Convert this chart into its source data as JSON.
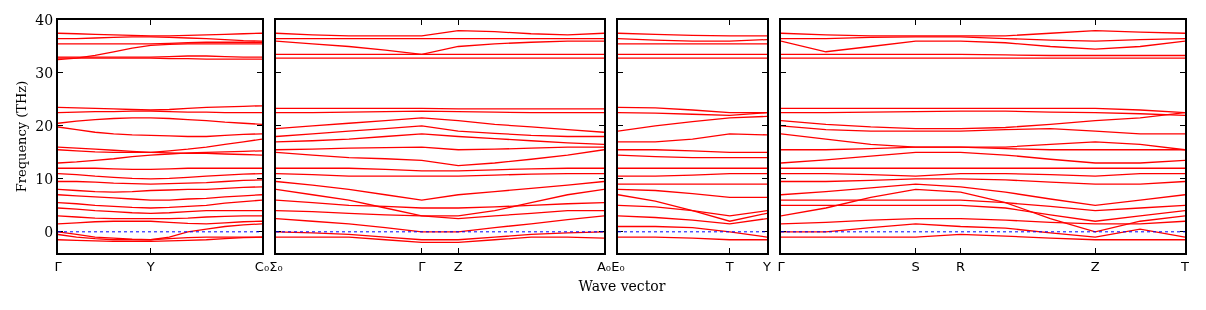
{
  "chart_data": [
    {
      "type": "line",
      "ylabel": "Frequency (THz)",
      "color": "#ff0000",
      "line_style": "solid",
      "marker": "none",
      "grid": false,
      "categories": [
        "Γ",
        null,
        null,
        null,
        null,
        "Y",
        null,
        null,
        null,
        null,
        null,
        "C₀"
      ],
      "ylim": [
        -4,
        40
      ],
      "yticks": [
        0,
        10,
        20,
        30,
        40
      ],
      "ref_lines": [
        {
          "axis": "y",
          "value": 0,
          "color": "#0000ff",
          "line_style": "dotted"
        }
      ],
      "series": [
        {
          "values": [
            37.5,
            37.4,
            37.3,
            37.2,
            37.1,
            37,
            37,
            37.1,
            37.2,
            37.3,
            37.4,
            37.5
          ]
        },
        {
          "values": [
            36.5,
            36.5,
            36.6,
            36.7,
            36.8,
            36.8,
            36.7,
            36.6,
            36.5,
            36.3,
            36.1,
            36
          ]
        },
        {
          "values": [
            35.5,
            35.5,
            35.5,
            35.5,
            35.5,
            35.5,
            35.6,
            35.7,
            35.8,
            35.8,
            35.8,
            35.8
          ]
        },
        {
          "values": [
            32.5,
            32.8,
            33.3,
            34,
            34.7,
            35.2,
            35.4,
            35.5,
            35.5,
            35.5,
            35.5,
            35.5
          ]
        },
        {
          "values": [
            33,
            33,
            33,
            33,
            33,
            33,
            33.1,
            33.2,
            33.2,
            33.1,
            33,
            33
          ]
        },
        {
          "values": [
            32.8,
            32.8,
            32.8,
            32.8,
            32.8,
            32.8,
            32.7,
            32.7,
            32.6,
            32.6,
            32.6,
            32.6
          ]
        },
        {
          "values": [
            23.5,
            23.4,
            23.3,
            23.2,
            23.1,
            23,
            23.1,
            23.3,
            23.5,
            23.6,
            23.7,
            23.8
          ]
        },
        {
          "values": [
            22.5,
            22.6,
            22.7,
            22.7,
            22.8,
            22.8,
            22.7,
            22.6,
            22.6,
            22.5,
            22.5,
            22.5
          ]
        },
        {
          "values": [
            20.5,
            20.9,
            21.2,
            21.4,
            21.5,
            21.5,
            21.4,
            21.2,
            21,
            20.7,
            20.5,
            20.3
          ]
        },
        {
          "values": [
            19.8,
            19.3,
            18.8,
            18.5,
            18.3,
            18.2,
            18.1,
            18,
            18,
            18.2,
            18.4,
            18.5
          ]
        },
        {
          "values": [
            16,
            15.8,
            15.6,
            15.4,
            15.2,
            15,
            15.3,
            15.6,
            16,
            16.5,
            17,
            17.5
          ]
        },
        {
          "values": [
            15.5,
            15.3,
            15.1,
            15,
            15,
            15,
            14.9,
            14.8,
            14.8,
            14.7,
            14.6,
            14.5
          ]
        },
        {
          "values": [
            13,
            13.2,
            13.5,
            13.8,
            14.2,
            14.5,
            14.7,
            14.9,
            15,
            15.1,
            15.2,
            15.3
          ]
        },
        {
          "values": [
            12,
            12,
            12,
            11.9,
            11.8,
            11.8,
            11.9,
            12,
            12,
            12,
            12,
            12
          ]
        },
        {
          "values": [
            11,
            10.8,
            10.5,
            10.3,
            10.1,
            10,
            10.1,
            10.3,
            10.5,
            10.7,
            10.9,
            11
          ]
        },
        {
          "values": [
            9.5,
            9.5,
            9.4,
            9.2,
            9.1,
            9,
            9.1,
            9.2,
            9.3,
            9.5,
            9.7,
            9.8
          ]
        },
        {
          "values": [
            8,
            7.8,
            7.6,
            7.5,
            7.6,
            7.8,
            7.9,
            8,
            8,
            8.2,
            8.4,
            8.5
          ]
        },
        {
          "values": [
            7,
            6.8,
            6.6,
            6.4,
            6.2,
            6,
            6,
            6.2,
            6.3,
            6.6,
            6.8,
            7
          ]
        },
        {
          "values": [
            5.5,
            5.3,
            5,
            4.8,
            4.6,
            4.5,
            4.6,
            4.8,
            5,
            5.4,
            5.7,
            6
          ]
        },
        {
          "values": [
            4.5,
            4.3,
            4,
            3.8,
            3.6,
            3.5,
            3.6,
            3.8,
            4,
            4,
            4,
            4
          ]
        },
        {
          "values": [
            3,
            2.8,
            2.6,
            2.5,
            2.5,
            2.5,
            2.5,
            2.6,
            2.8,
            2.9,
            3,
            3
          ]
        },
        {
          "values": [
            1.5,
            1.7,
            1.9,
            2,
            2,
            2,
            1.8,
            1.6,
            1.5,
            1.7,
            1.9,
            2
          ]
        },
        {
          "values": [
            0,
            -0.5,
            -1,
            -1.2,
            -1.4,
            -1.5,
            -1,
            0,
            0.5,
            1,
            1.3,
            1.5
          ]
        },
        {
          "values": [
            -0.5,
            -1,
            -1.3,
            -1.5,
            -1.5,
            -1.5,
            -1.3,
            -1.1,
            -1,
            -1,
            -1,
            -1
          ]
        },
        {
          "values": [
            -1.5,
            -1.6,
            -1.7,
            -1.8,
            -1.8,
            -1.8,
            -1.7,
            -1.6,
            -1.5,
            -1.3,
            -1.1,
            -1
          ]
        }
      ]
    },
    {
      "type": "line",
      "xlabel": "Wave vector",
      "color": "#ff0000",
      "line_style": "solid",
      "marker": "none",
      "grid": false,
      "tick_labels": "x",
      "categories": [
        "Σ₀",
        null,
        null,
        null,
        "Γ",
        "Z",
        null,
        null,
        null,
        "A₀"
      ],
      "ylim": [
        -4,
        40
      ],
      "ref_lines": [
        {
          "axis": "y",
          "value": 0,
          "color": "#0000ff",
          "line_style": "dotted"
        }
      ],
      "series": [
        {
          "values": [
            37.5,
            37.2,
            37,
            37,
            37,
            38,
            37.8,
            37.4,
            37.2,
            37.5
          ]
        },
        {
          "values": [
            36.5,
            36.5,
            36.5,
            36.5,
            36.5,
            36.5,
            36.5,
            36.5,
            36.5,
            36.5
          ]
        },
        {
          "values": [
            36,
            35.5,
            35,
            34.3,
            33.5,
            35,
            35.5,
            35.8,
            36,
            36
          ]
        },
        {
          "values": [
            33.5,
            33.5,
            33.5,
            33.5,
            33.5,
            33.5,
            33.5,
            33.5,
            33.5,
            33.5
          ]
        },
        {
          "values": [
            32.8,
            32.8,
            32.8,
            32.8,
            32.8,
            32.8,
            32.8,
            32.8,
            32.8,
            32.8
          ]
        },
        {
          "values": [
            23.3,
            23.3,
            23.3,
            23.3,
            23.3,
            23.2,
            23.2,
            23.2,
            23.2,
            23.2
          ]
        },
        {
          "values": [
            22.5,
            22.5,
            22.6,
            22.7,
            22.8,
            22.7,
            22.6,
            22.5,
            22.5,
            22.5
          ]
        },
        {
          "values": [
            19.5,
            20,
            20.5,
            21,
            21.5,
            21,
            20.3,
            19.8,
            19.3,
            18.8
          ]
        },
        {
          "values": [
            18,
            18.5,
            19,
            19.5,
            20,
            19,
            18.6,
            18.2,
            18,
            18
          ]
        },
        {
          "values": [
            17,
            17.2,
            17.5,
            18,
            18.5,
            18,
            17.6,
            17.2,
            16.8,
            16.5
          ]
        },
        {
          "values": [
            15.5,
            15.6,
            15.8,
            15.9,
            16,
            15.5,
            15.6,
            15.8,
            16,
            16
          ]
        },
        {
          "values": [
            15,
            14.5,
            14,
            13.8,
            13.5,
            12.5,
            13,
            13.7,
            14.5,
            15.5
          ]
        },
        {
          "values": [
            12,
            12,
            12,
            11.8,
            11.5,
            11.5,
            11.7,
            11.9,
            12,
            12
          ]
        },
        {
          "values": [
            11,
            10.8,
            10.5,
            10.5,
            10.5,
            10.5,
            10.7,
            10.9,
            11,
            11
          ]
        },
        {
          "values": [
            9.5,
            8.8,
            8,
            7,
            6,
            7,
            7.6,
            8.2,
            8.8,
            9.5
          ]
        },
        {
          "values": [
            8,
            7,
            6,
            4.5,
            3,
            3,
            4,
            5.5,
            7,
            8
          ]
        },
        {
          "values": [
            6,
            5.5,
            5,
            4.8,
            4.5,
            4.5,
            4.7,
            5,
            5.3,
            5.5
          ]
        },
        {
          "values": [
            4,
            3.8,
            3.5,
            3.2,
            3,
            2.5,
            3,
            3.5,
            4,
            4
          ]
        },
        {
          "values": [
            2.5,
            2,
            1.5,
            0.8,
            0,
            0,
            0.8,
            1.5,
            2.3,
            3
          ]
        },
        {
          "values": [
            0,
            -0.2,
            -0.5,
            -1,
            -1.5,
            -1.5,
            -1,
            -0.5,
            -0.2,
            0
          ]
        },
        {
          "values": [
            -1,
            -1,
            -1,
            -1.5,
            -2,
            -2,
            -1.5,
            -1,
            -1,
            -1.2
          ]
        }
      ]
    },
    {
      "type": "line",
      "color": "#ff0000",
      "line_style": "solid",
      "marker": "none",
      "grid": false,
      "tick_labels": "x",
      "categories": [
        "E₀",
        null,
        null,
        "T",
        "Y"
      ],
      "ylim": [
        -4,
        40
      ],
      "ref_lines": [
        {
          "axis": "y",
          "value": 0,
          "color": "#0000ff",
          "line_style": "dotted"
        }
      ],
      "series": [
        {
          "values": [
            37.5,
            37.3,
            37.1,
            37,
            37
          ]
        },
        {
          "values": [
            36.5,
            36.2,
            36,
            36,
            36.3
          ]
        },
        {
          "values": [
            35.5,
            35.5,
            35.5,
            35.5,
            35.5
          ]
        },
        {
          "values": [
            33.5,
            33.5,
            33.5,
            33.5,
            33.5
          ]
        },
        {
          "values": [
            32.8,
            32.8,
            32.8,
            32.8,
            32.8
          ]
        },
        {
          "values": [
            23.5,
            23.4,
            23,
            22.5,
            22.5
          ]
        },
        {
          "values": [
            22.5,
            22.4,
            22.2,
            22,
            22.5
          ]
        },
        {
          "values": [
            19,
            20,
            20.8,
            21.5,
            21.8
          ]
        },
        {
          "values": [
            17,
            17,
            17.5,
            18.5,
            18.3
          ]
        },
        {
          "values": [
            15.5,
            15.5,
            15.3,
            15,
            15
          ]
        },
        {
          "values": [
            14.5,
            14.2,
            14,
            14,
            14
          ]
        },
        {
          "values": [
            12,
            12,
            12,
            12,
            12
          ]
        },
        {
          "values": [
            10.5,
            10.5,
            10.7,
            11,
            11
          ]
        },
        {
          "values": [
            9,
            9,
            9,
            9,
            9
          ]
        },
        {
          "values": [
            8,
            7.8,
            7.2,
            6.5,
            6.5
          ]
        },
        {
          "values": [
            7,
            5.8,
            4,
            2,
            3.5
          ]
        },
        {
          "values": [
            5,
            4.7,
            4,
            3,
            4
          ]
        },
        {
          "values": [
            3,
            2.7,
            2.2,
            1.5,
            2.5
          ]
        },
        {
          "values": [
            1,
            1,
            0.8,
            0,
            -1
          ]
        },
        {
          "values": [
            -1,
            -1,
            -1.2,
            -1.5,
            -1.5
          ]
        }
      ]
    },
    {
      "type": "line",
      "color": "#ff0000",
      "line_style": "solid",
      "marker": "none",
      "grid": false,
      "tick_labels": "x",
      "categories": [
        "Γ",
        null,
        null,
        "S",
        "R",
        null,
        null,
        "Z",
        null,
        "T"
      ],
      "ylim": [
        -4,
        40
      ],
      "ref_lines": [
        {
          "axis": "y",
          "value": 0,
          "color": "#0000ff",
          "line_style": "dotted"
        }
      ],
      "series": [
        {
          "values": [
            37.5,
            37.2,
            37,
            37,
            37,
            37,
            37.5,
            38,
            37.7,
            37.5
          ]
        },
        {
          "values": [
            36.5,
            36.5,
            36.7,
            36.8,
            36.8,
            36.5,
            36.2,
            36,
            36.3,
            36.5
          ]
        },
        {
          "values": [
            36,
            34,
            35,
            36,
            36,
            35.7,
            35,
            34.5,
            35,
            36
          ]
        },
        {
          "values": [
            33.5,
            33.5,
            33.5,
            33.5,
            33.5,
            33.4,
            33.3,
            33.3,
            33.3,
            33.3
          ]
        },
        {
          "values": [
            32.8,
            32.8,
            32.8,
            32.8,
            32.8,
            32.8,
            32.8,
            32.8,
            32.8,
            32.8
          ]
        },
        {
          "values": [
            23.3,
            23.3,
            23.3,
            23.3,
            23.3,
            23.3,
            23.3,
            23.3,
            23,
            22.5
          ]
        },
        {
          "values": [
            22.5,
            22.5,
            22.6,
            22.7,
            22.8,
            22.8,
            22.6,
            22.5,
            22.3,
            22
          ]
        },
        {
          "values": [
            21,
            20.3,
            19.8,
            19.5,
            19.5,
            19.7,
            20.3,
            21,
            21.5,
            22.5
          ]
        },
        {
          "values": [
            20,
            19.3,
            19,
            19,
            19,
            19.3,
            19.5,
            19,
            18.5,
            18.5
          ]
        },
        {
          "values": [
            18.5,
            17.5,
            16.5,
            16,
            16,
            16,
            16.5,
            17,
            16.5,
            15.5
          ]
        },
        {
          "values": [
            15.5,
            15.5,
            15.7,
            16,
            16,
            15.7,
            15.5,
            15.5,
            15.5,
            15.5
          ]
        },
        {
          "values": [
            13,
            13.6,
            14.3,
            15,
            15,
            14.5,
            13.7,
            13,
            13,
            13.5
          ]
        },
        {
          "values": [
            12,
            12,
            12,
            12,
            12,
            12,
            12,
            12,
            12,
            12
          ]
        },
        {
          "values": [
            11,
            11,
            10.8,
            10.5,
            11,
            11,
            10.8,
            10.5,
            11,
            11
          ]
        },
        {
          "values": [
            9.5,
            9.5,
            9.7,
            10,
            10,
            9.8,
            9.4,
            9,
            9,
            9.5
          ]
        },
        {
          "values": [
            7,
            7.6,
            8.3,
            9,
            8.5,
            7.5,
            6.2,
            5,
            6,
            7
          ]
        },
        {
          "values": [
            6,
            6,
            6,
            6,
            6,
            5.5,
            4.8,
            4,
            4.5,
            5
          ]
        },
        {
          "values": [
            5,
            5,
            5,
            5,
            5,
            4.5,
            3.2,
            2,
            3,
            4
          ]
        },
        {
          "values": [
            3,
            4.5,
            6.5,
            8,
            7.5,
            5.5,
            2.5,
            0,
            2,
            3
          ]
        },
        {
          "values": [
            1.5,
            1.8,
            2.2,
            2.5,
            2.5,
            2.2,
            1.8,
            1.5,
            1.5,
            2
          ]
        },
        {
          "values": [
            0,
            0,
            0.8,
            1.5,
            1,
            0.7,
            -0.2,
            -1,
            0.5,
            -1
          ]
        },
        {
          "values": [
            -1,
            -1,
            -1,
            -1,
            -0.5,
            -0.8,
            -1.2,
            -1.5,
            -1.5,
            -1.5
          ]
        }
      ]
    }
  ]
}
